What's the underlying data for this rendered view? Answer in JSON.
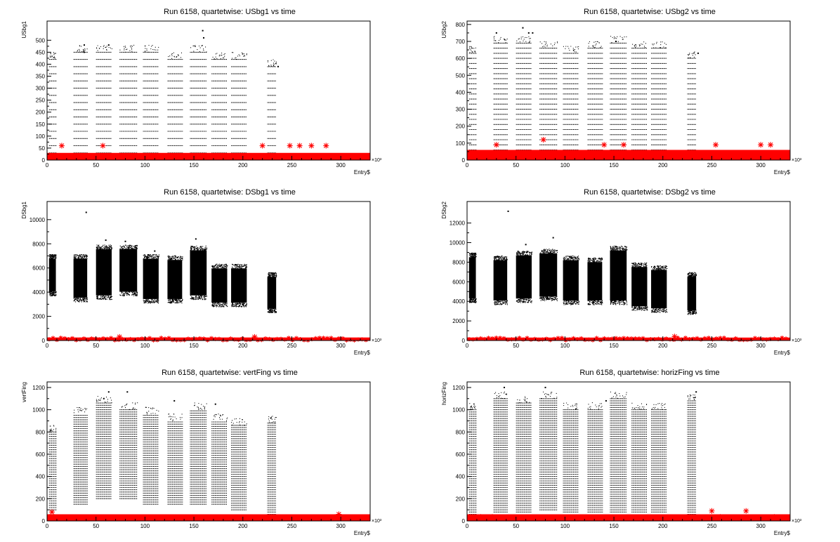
{
  "colors": {
    "main_series": "#000000",
    "quartet_series": "#ff0000",
    "frame": "#000000"
  },
  "chart_data": [
    {
      "type": "scatter",
      "title": "Run 6158, quartetwise: USbg1 vs time",
      "xlabel": "Entry$",
      "ylabel": "USbg1",
      "x_multiplier_label": "×10³",
      "xlim": [
        0,
        330
      ],
      "ylim": [
        0,
        580
      ],
      "x_ticks": [
        0,
        50,
        100,
        150,
        200,
        250,
        300
      ],
      "y_ticks": [
        0,
        50,
        100,
        150,
        200,
        250,
        300,
        350,
        400,
        450,
        500
      ],
      "tick_labels_x": [
        "0",
        "50",
        "100",
        "150",
        "200",
        "250",
        "300"
      ],
      "tick_labels_y": [
        "0",
        "50",
        "100",
        "150",
        "200",
        "250",
        "300",
        "350",
        "400",
        "450",
        "500"
      ],
      "series": [
        {
          "kind": "main",
          "bands": [
            {
              "x0": 2,
              "x1": 9,
              "y0": 0,
              "y1": 420,
              "quant": 30
            },
            {
              "x0": 27,
              "x1": 41,
              "y0": 0,
              "y1": 450,
              "quant": 30
            },
            {
              "x0": 50,
              "x1": 66,
              "y0": 0,
              "y1": 450,
              "quant": 30
            },
            {
              "x0": 74,
              "x1": 92,
              "y0": 0,
              "y1": 450,
              "quant": 30
            },
            {
              "x0": 98,
              "x1": 114,
              "y0": 0,
              "y1": 450,
              "quant": 30
            },
            {
              "x0": 123,
              "x1": 138,
              "y0": 0,
              "y1": 420,
              "quant": 30
            },
            {
              "x0": 146,
              "x1": 163,
              "y0": 0,
              "y1": 450,
              "quant": 30
            },
            {
              "x0": 168,
              "x1": 184,
              "y0": 0,
              "y1": 420,
              "quant": 30
            },
            {
              "x0": 188,
              "x1": 204,
              "y0": 0,
              "y1": 420,
              "quant": 30
            },
            {
              "x0": 225,
              "x1": 234,
              "y0": 0,
              "y1": 390,
              "quant": 30
            }
          ],
          "outliers": [
            [
              38,
              480
            ],
            [
              63,
              480
            ],
            [
              159,
              540
            ],
            [
              160,
              510
            ],
            [
              38,
              450
            ],
            [
              236,
              390
            ]
          ]
        },
        {
          "kind": "quartet",
          "bands": [
            {
              "x0": 0,
              "x1": 330,
              "y0": 0,
              "y1": 30
            }
          ],
          "outliers": [
            [
              15,
              60
            ],
            [
              57,
              60
            ],
            [
              220,
              60
            ],
            [
              248,
              60
            ],
            [
              258,
              60
            ],
            [
              270,
              60
            ],
            [
              285,
              60
            ]
          ]
        }
      ]
    },
    {
      "type": "scatter",
      "title": "Run 6158, quartetwise: USbg2 vs time",
      "xlabel": "Entry$",
      "ylabel": "USbg2",
      "x_multiplier_label": "×10³",
      "xlim": [
        0,
        330
      ],
      "ylim": [
        0,
        820
      ],
      "x_ticks": [
        0,
        50,
        100,
        150,
        200,
        250,
        300
      ],
      "y_ticks": [
        0,
        100,
        200,
        300,
        400,
        500,
        600,
        700,
        800
      ],
      "tick_labels_x": [
        "0",
        "50",
        "100",
        "150",
        "200",
        "250",
        "300"
      ],
      "tick_labels_y": [
        "0",
        "100",
        "200",
        "300",
        "400",
        "500",
        "600",
        "700",
        "800"
      ],
      "series": [
        {
          "kind": "main",
          "bands": [
            {
              "x0": 2,
              "x1": 9,
              "y0": 60,
              "y1": 630,
              "quant": 30
            },
            {
              "x0": 27,
              "x1": 41,
              "y0": 60,
              "y1": 690,
              "quant": 30
            },
            {
              "x0": 50,
              "x1": 66,
              "y0": 60,
              "y1": 690,
              "quant": 30
            },
            {
              "x0": 74,
              "x1": 92,
              "y0": 60,
              "y1": 660,
              "quant": 30
            },
            {
              "x0": 98,
              "x1": 114,
              "y0": 60,
              "y1": 630,
              "quant": 30
            },
            {
              "x0": 123,
              "x1": 138,
              "y0": 60,
              "y1": 660,
              "quant": 30
            },
            {
              "x0": 146,
              "x1": 163,
              "y0": 60,
              "y1": 690,
              "quant": 30
            },
            {
              "x0": 168,
              "x1": 184,
              "y0": 60,
              "y1": 660,
              "quant": 30
            },
            {
              "x0": 188,
              "x1": 204,
              "y0": 60,
              "y1": 660,
              "quant": 30
            },
            {
              "x0": 225,
              "x1": 234,
              "y0": 60,
              "y1": 600,
              "quant": 30
            }
          ],
          "outliers": [
            [
              30,
              750
            ],
            [
              57,
              780
            ],
            [
              63,
              750
            ],
            [
              67,
              750
            ],
            [
              152,
              700
            ],
            [
              236,
              630
            ]
          ]
        },
        {
          "kind": "quartet",
          "bands": [
            {
              "x0": 0,
              "x1": 330,
              "y0": 0,
              "y1": 60
            }
          ],
          "outliers": [
            [
              30,
              90
            ],
            [
              78,
              120
            ],
            [
              140,
              90
            ],
            [
              160,
              90
            ],
            [
              254,
              90
            ],
            [
              300,
              90
            ],
            [
              310,
              90
            ]
          ]
        }
      ]
    },
    {
      "type": "scatter",
      "title": "Run 6158, quartetwise: DSbg1 vs time",
      "xlabel": "Entry$",
      "ylabel": "DSbg1",
      "x_multiplier_label": "×10³",
      "xlim": [
        0,
        330
      ],
      "ylim": [
        0,
        11500
      ],
      "x_ticks": [
        0,
        50,
        100,
        150,
        200,
        250,
        300
      ],
      "y_ticks": [
        0,
        2000,
        4000,
        6000,
        8000,
        10000
      ],
      "tick_labels_x": [
        "0",
        "50",
        "100",
        "150",
        "200",
        "250",
        "300"
      ],
      "tick_labels_y": [
        "0",
        "2000",
        "4000",
        "6000",
        "8000",
        "10000"
      ],
      "series": [
        {
          "kind": "main",
          "bands": [
            {
              "x0": 2,
              "x1": 9,
              "y0": 3800,
              "y1": 7000
            },
            {
              "x0": 27,
              "x1": 41,
              "y0": 3300,
              "y1": 7000
            },
            {
              "x0": 50,
              "x1": 66,
              "y0": 3500,
              "y1": 7800
            },
            {
              "x0": 74,
              "x1": 92,
              "y0": 3800,
              "y1": 7800
            },
            {
              "x0": 98,
              "x1": 114,
              "y0": 3200,
              "y1": 7000
            },
            {
              "x0": 123,
              "x1": 138,
              "y0": 3200,
              "y1": 6900
            },
            {
              "x0": 146,
              "x1": 163,
              "y0": 3500,
              "y1": 7700
            },
            {
              "x0": 168,
              "x1": 184,
              "y0": 2900,
              "y1": 6200
            },
            {
              "x0": 188,
              "x1": 204,
              "y0": 2900,
              "y1": 6200
            },
            {
              "x0": 225,
              "x1": 234,
              "y0": 2400,
              "y1": 5500
            }
          ],
          "outliers": [
            [
              40,
              10600
            ],
            [
              60,
              8300
            ],
            [
              80,
              8200
            ],
            [
              152,
              8400
            ],
            [
              110,
              7400
            ],
            [
              200,
              3000
            ]
          ]
        },
        {
          "kind": "quartet",
          "bands": [
            {
              "x0": 0,
              "x1": 330,
              "y0": 0,
              "y1": 250
            }
          ],
          "outliers": [
            [
              74,
              300
            ],
            [
              212,
              300
            ]
          ]
        }
      ]
    },
    {
      "type": "scatter",
      "title": "Run 6158, quartetwise: DSbg2 vs time",
      "xlabel": "Entry$",
      "ylabel": "DSbg2",
      "x_multiplier_label": "×10³",
      "xlim": [
        0,
        330
      ],
      "ylim": [
        0,
        14200
      ],
      "x_ticks": [
        0,
        50,
        100,
        150,
        200,
        250,
        300
      ],
      "y_ticks": [
        0,
        2000,
        4000,
        6000,
        8000,
        10000,
        12000
      ],
      "tick_labels_x": [
        "0",
        "50",
        "100",
        "150",
        "200",
        "250",
        "300"
      ],
      "tick_labels_y": [
        "0",
        "2000",
        "4000",
        "6000",
        "8000",
        "10000",
        "12000"
      ],
      "series": [
        {
          "kind": "main",
          "bands": [
            {
              "x0": 2,
              "x1": 9,
              "y0": 4000,
              "y1": 8800
            },
            {
              "x0": 27,
              "x1": 41,
              "y0": 3800,
              "y1": 8500
            },
            {
              "x0": 50,
              "x1": 66,
              "y0": 4000,
              "y1": 9000
            },
            {
              "x0": 74,
              "x1": 92,
              "y0": 4200,
              "y1": 9200
            },
            {
              "x0": 98,
              "x1": 114,
              "y0": 3800,
              "y1": 8500
            },
            {
              "x0": 123,
              "x1": 138,
              "y0": 3800,
              "y1": 8300
            },
            {
              "x0": 146,
              "x1": 163,
              "y0": 3800,
              "y1": 9500
            },
            {
              "x0": 168,
              "x1": 184,
              "y0": 3200,
              "y1": 7800
            },
            {
              "x0": 188,
              "x1": 204,
              "y0": 3000,
              "y1": 7500
            },
            {
              "x0": 225,
              "x1": 234,
              "y0": 2800,
              "y1": 6800
            }
          ],
          "outliers": [
            [
              42,
              13200
            ],
            [
              88,
              10500
            ],
            [
              60,
              9800
            ],
            [
              152,
              9600
            ]
          ]
        },
        {
          "kind": "quartet",
          "bands": [
            {
              "x0": 0,
              "x1": 330,
              "y0": 0,
              "y1": 300
            }
          ],
          "outliers": [
            [
              212,
              400
            ]
          ]
        }
      ]
    },
    {
      "type": "scatter",
      "title": "Run 6158, quartetwise: vertFing vs time",
      "xlabel": "Entry$",
      "ylabel": "vertFing",
      "x_multiplier_label": "×10³",
      "xlim": [
        0,
        330
      ],
      "ylim": [
        0,
        1250
      ],
      "x_ticks": [
        0,
        50,
        100,
        150,
        200,
        250,
        300
      ],
      "y_ticks": [
        0,
        200,
        400,
        600,
        800,
        1000,
        1200
      ],
      "tick_labels_x": [
        "0",
        "50",
        "100",
        "150",
        "200",
        "250",
        "300"
      ],
      "tick_labels_y": [
        "0",
        "200",
        "400",
        "600",
        "800",
        "1000",
        "1200"
      ],
      "series": [
        {
          "kind": "main",
          "bands": [
            {
              "x0": 2,
              "x1": 9,
              "y0": 100,
              "y1": 800,
              "quant": 20
            },
            {
              "x0": 27,
              "x1": 41,
              "y0": 150,
              "y1": 960,
              "quant": 20
            },
            {
              "x0": 50,
              "x1": 66,
              "y0": 200,
              "y1": 1060,
              "quant": 20
            },
            {
              "x0": 74,
              "x1": 92,
              "y0": 200,
              "y1": 1000,
              "quant": 20
            },
            {
              "x0": 98,
              "x1": 114,
              "y0": 150,
              "y1": 960,
              "quant": 20
            },
            {
              "x0": 123,
              "x1": 138,
              "y0": 150,
              "y1": 900,
              "quant": 20
            },
            {
              "x0": 146,
              "x1": 163,
              "y0": 150,
              "y1": 1000,
              "quant": 20
            },
            {
              "x0": 168,
              "x1": 184,
              "y0": 150,
              "y1": 900,
              "quant": 20
            },
            {
              "x0": 188,
              "x1": 204,
              "y0": 100,
              "y1": 860,
              "quant": 20
            },
            {
              "x0": 225,
              "x1": 234,
              "y0": 60,
              "y1": 880,
              "quant": 20
            }
          ],
          "outliers": [
            [
              63,
              1160
            ],
            [
              82,
              1160
            ],
            [
              130,
              1080
            ],
            [
              172,
              1050
            ],
            [
              58,
              1100
            ]
          ]
        },
        {
          "kind": "quartet",
          "bands": [
            {
              "x0": 0,
              "x1": 330,
              "y0": 0,
              "y1": 60
            }
          ],
          "outliers": [
            [
              5,
              80
            ],
            [
              298,
              60
            ]
          ]
        }
      ]
    },
    {
      "type": "scatter",
      "title": "Run 6158, quartetwise: horizFing vs time",
      "xlabel": "Entry$",
      "ylabel": "horizFing",
      "x_multiplier_label": "×10³",
      "xlim": [
        0,
        330
      ],
      "ylim": [
        0,
        1250
      ],
      "x_ticks": [
        0,
        50,
        100,
        150,
        200,
        250,
        300
      ],
      "y_ticks": [
        0,
        200,
        400,
        600,
        800,
        1000,
        1200
      ],
      "tick_labels_x": [
        "0",
        "50",
        "100",
        "150",
        "200",
        "250",
        "300"
      ],
      "tick_labels_y": [
        "0",
        "200",
        "400",
        "600",
        "800",
        "1000",
        "1200"
      ],
      "series": [
        {
          "kind": "main",
          "bands": [
            {
              "x0": 2,
              "x1": 9,
              "y0": 60,
              "y1": 1000,
              "quant": 20
            },
            {
              "x0": 27,
              "x1": 41,
              "y0": 80,
              "y1": 1100,
              "quant": 20
            },
            {
              "x0": 50,
              "x1": 66,
              "y0": 80,
              "y1": 1060,
              "quant": 20
            },
            {
              "x0": 74,
              "x1": 92,
              "y0": 100,
              "y1": 1100,
              "quant": 20
            },
            {
              "x0": 98,
              "x1": 114,
              "y0": 80,
              "y1": 1000,
              "quant": 20
            },
            {
              "x0": 123,
              "x1": 138,
              "y0": 80,
              "y1": 1000,
              "quant": 20
            },
            {
              "x0": 146,
              "x1": 163,
              "y0": 80,
              "y1": 1100,
              "quant": 20
            },
            {
              "x0": 168,
              "x1": 184,
              "y0": 80,
              "y1": 1000,
              "quant": 20
            },
            {
              "x0": 188,
              "x1": 204,
              "y0": 80,
              "y1": 1000,
              "quant": 20
            },
            {
              "x0": 225,
              "x1": 234,
              "y0": 60,
              "y1": 1080,
              "quant": 20
            }
          ],
          "outliers": [
            [
              38,
              1200
            ],
            [
              80,
              1200
            ],
            [
              234,
              1160
            ],
            [
              142,
              1080
            ]
          ]
        },
        {
          "kind": "quartet",
          "bands": [
            {
              "x0": 0,
              "x1": 330,
              "y0": 0,
              "y1": 60
            }
          ],
          "outliers": [
            [
              250,
              90
            ],
            [
              285,
              90
            ]
          ]
        }
      ]
    }
  ]
}
